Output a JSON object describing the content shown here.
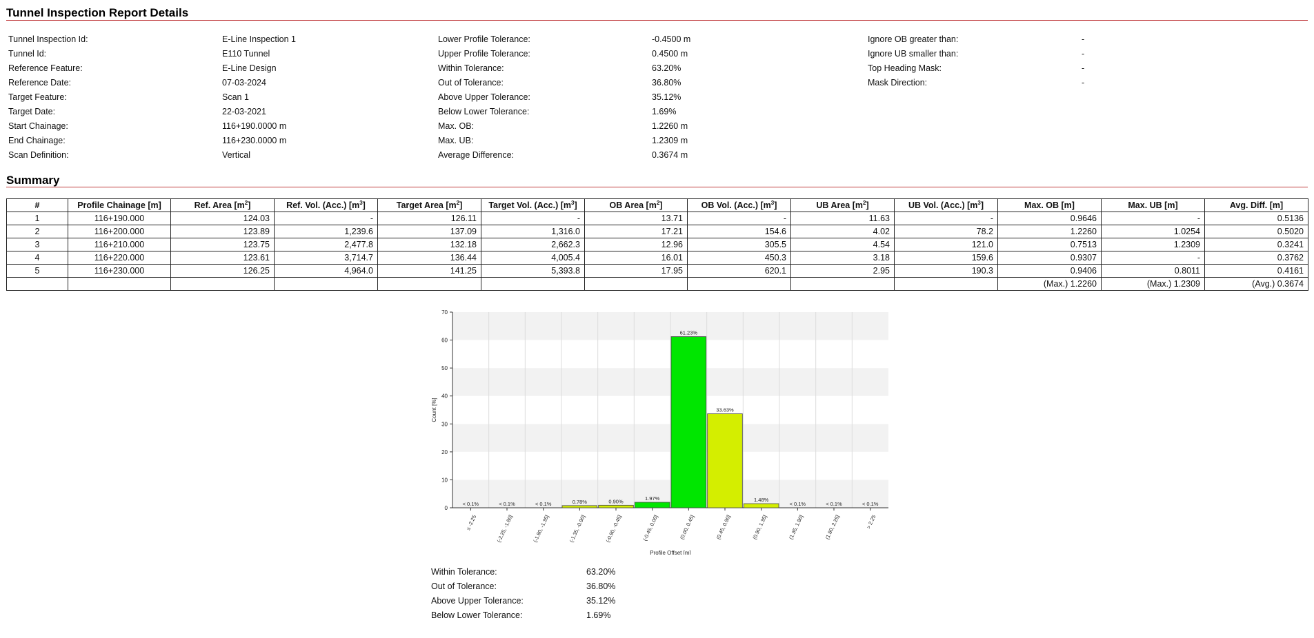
{
  "report": {
    "title": "Tunnel Inspection Report Details",
    "col1": [
      {
        "label": "Tunnel Inspection Id:",
        "value": "E-Line Inspection 1"
      },
      {
        "label": "Tunnel Id:",
        "value": "E110 Tunnel"
      },
      {
        "label": "Reference Feature:",
        "value": "E-Line Design"
      },
      {
        "label": "Reference Date:",
        "value": "07-03-2024"
      },
      {
        "label": "Target Feature:",
        "value": "Scan 1"
      },
      {
        "label": "Target Date:",
        "value": "22-03-2021"
      },
      {
        "label": "Start Chainage:",
        "value": "116+190.0000 m"
      },
      {
        "label": "End Chainage:",
        "value": "116+230.0000 m"
      },
      {
        "label": "Scan Definition:",
        "value": "Vertical"
      }
    ],
    "col2": [
      {
        "label": "Lower Profile Tolerance:",
        "value": "-0.4500 m"
      },
      {
        "label": "Upper Profile Tolerance:",
        "value": "0.4500 m"
      },
      {
        "label": "Within Tolerance:",
        "value": "63.20%"
      },
      {
        "label": "Out of Tolerance:",
        "value": "36.80%"
      },
      {
        "label": "Above Upper Tolerance:",
        "value": "35.12%"
      },
      {
        "label": "Below Lower Tolerance:",
        "value": "1.69%"
      },
      {
        "label": "Max. OB:",
        "value": "1.2260 m"
      },
      {
        "label": "Max. UB:",
        "value": "1.2309 m"
      },
      {
        "label": "Average Difference:",
        "value": "0.3674 m"
      }
    ],
    "col3": [
      {
        "label": "Ignore OB greater than:",
        "value": "-"
      },
      {
        "label": "Ignore UB smaller than:",
        "value": "-"
      },
      {
        "label": "Top Heading Mask:",
        "value": "-"
      },
      {
        "label": "Mask Direction:",
        "value": "-"
      }
    ]
  },
  "summary": {
    "title": "Summary",
    "headers": [
      {
        "text": "#",
        "sup": ""
      },
      {
        "text": "Profile Chainage [m]",
        "sup": ""
      },
      {
        "text": "Ref. Area [m",
        "sup": "2"
      },
      {
        "text": "Ref. Vol. (Acc.) [m",
        "sup": "3"
      },
      {
        "text": "Target Area [m",
        "sup": "2"
      },
      {
        "text": "Target Vol. (Acc.) [m",
        "sup": "3"
      },
      {
        "text": "OB Area [m",
        "sup": "2"
      },
      {
        "text": "OB Vol. (Acc.) [m",
        "sup": "3"
      },
      {
        "text": "UB Area [m",
        "sup": "2"
      },
      {
        "text": "UB Vol. (Acc.) [m",
        "sup": "3"
      },
      {
        "text": "Max. OB [m]",
        "sup": ""
      },
      {
        "text": "Max. UB [m]",
        "sup": ""
      },
      {
        "text": "Avg. Diff. [m]",
        "sup": ""
      }
    ],
    "rows": [
      [
        "1",
        "116+190.000",
        "124.03",
        "-",
        "126.11",
        "-",
        "13.71",
        "-",
        "11.63",
        "-",
        "0.9646",
        "-",
        "0.5136"
      ],
      [
        "2",
        "116+200.000",
        "123.89",
        "1,239.6",
        "137.09",
        "1,316.0",
        "17.21",
        "154.6",
        "4.02",
        "78.2",
        "1.2260",
        "1.0254",
        "0.5020"
      ],
      [
        "3",
        "116+210.000",
        "123.75",
        "2,477.8",
        "132.18",
        "2,662.3",
        "12.96",
        "305.5",
        "4.54",
        "121.0",
        "0.7513",
        "1.2309",
        "0.3241"
      ],
      [
        "4",
        "116+220.000",
        "123.61",
        "3,714.7",
        "136.44",
        "4,005.4",
        "16.01",
        "450.3",
        "3.18",
        "159.6",
        "0.9307",
        "-",
        "0.3762"
      ],
      [
        "5",
        "116+230.000",
        "126.25",
        "4,964.0",
        "141.25",
        "5,393.8",
        "17.95",
        "620.1",
        "2.95",
        "190.3",
        "0.9406",
        "0.8011",
        "0.4161"
      ]
    ],
    "totals": [
      "",
      "",
      "",
      "",
      "",
      "",
      "",
      "",
      "",
      "",
      "(Max.) 1.2260",
      "(Max.) 1.2309",
      "(Avg.) 0.3674"
    ]
  },
  "chart_data": {
    "type": "bar",
    "ylabel": "Count [%]",
    "xlabel": "Profile Offset [m]",
    "ylim": [
      0,
      70
    ],
    "yticks": [
      0,
      10,
      20,
      30,
      40,
      50,
      60,
      70
    ],
    "categories": [
      "≤ -2.25",
      "(-2.25, -1.80]",
      "(-1.80, -1.35]",
      "(-1.35, -0.90]",
      "(-0.90, -0.45]",
      "(-0.45, 0.00]",
      "(0.00, 0.45]",
      "(0.45, 0.90]",
      "(0.90, 1.35]",
      "(1.35, 1.80]",
      "(1.80, 2.25]",
      "> 2.25"
    ],
    "values": [
      0,
      0,
      0,
      0.78,
      0.9,
      1.97,
      61.23,
      33.63,
      1.48,
      0,
      0,
      0
    ],
    "labels": [
      "< 0.1%",
      "< 0.1%",
      "< 0.1%",
      "0.78%",
      "0.90%",
      "1.97%",
      "61.23%",
      "33.63%",
      "1.48%",
      "< 0.1%",
      "< 0.1%",
      "< 0.1%"
    ],
    "colors": [
      "#ffffff",
      "#ffffff",
      "#ffffff",
      "#d4ee00",
      "#d4ee00",
      "#00e600",
      "#00e600",
      "#d4ee00",
      "#d4ee00",
      "#ffffff",
      "#ffffff",
      "#ffffff"
    ]
  },
  "footer": [
    {
      "label": "Within Tolerance:",
      "value": "63.20%"
    },
    {
      "label": "Out of Tolerance:",
      "value": "36.80%"
    },
    {
      "label": "Above Upper Tolerance:",
      "value": "35.12%"
    },
    {
      "label": "Below Lower Tolerance:",
      "value": "1.69%"
    }
  ]
}
